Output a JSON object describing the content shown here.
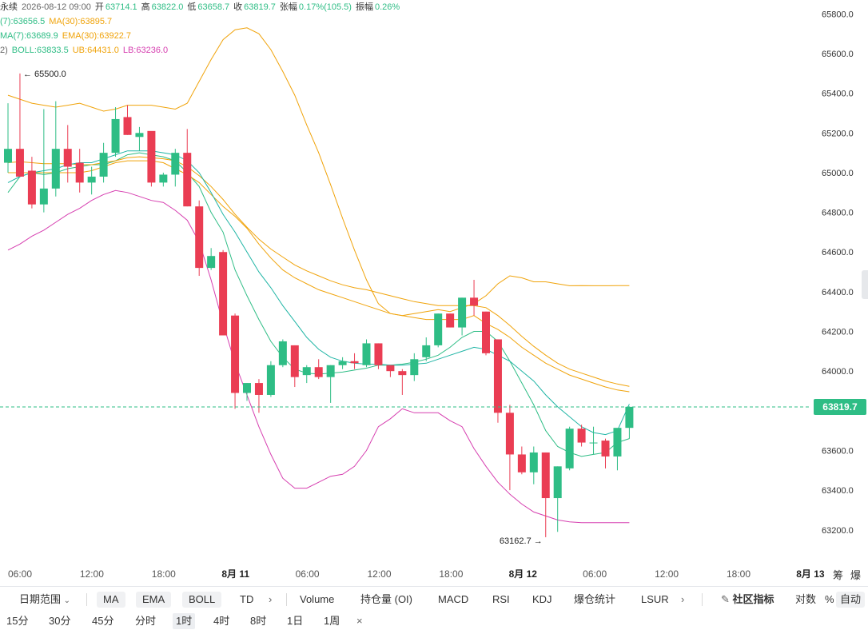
{
  "info": {
    "line1": {
      "symbol": "永续",
      "datetime": "2026-08-12 09:00",
      "open_label": "开",
      "open": "63714.1",
      "high_label": "高",
      "high": "63822.0",
      "low_label": "低",
      "low": "63658.7",
      "close_label": "收",
      "close": "63819.7",
      "change_label": "张幅",
      "change": "0.17%(105.5)",
      "amp_label": "振幅",
      "amp": "0.26%"
    },
    "line2": {
      "a": "(7):63656.5",
      "b": "MA(30):63895.7"
    },
    "line3": {
      "a": "MA(7):63689.9",
      "b": "EMA(30):63922.7"
    },
    "line4": {
      "a": "2)",
      "boll": "BOLL:63833.5",
      "ub": "UB:64431.0",
      "lb": "LB:63236.0"
    }
  },
  "colors": {
    "up": "#2ebd85",
    "down": "#ea3d53",
    "ma7": "#2ebd85",
    "ma30": "#f0a30a",
    "boll": "#d63fb0",
    "price_tag": "#2ebd85"
  },
  "chart_data": {
    "type": "candlestick",
    "interval": "1时",
    "ylim": [
      63050,
      65870
    ],
    "yticks": [
      65800.0,
      65600.0,
      65400.0,
      65200.0,
      65000.0,
      64800.0,
      64600.0,
      64400.0,
      64200.0,
      64000.0,
      63600.0,
      63400.0,
      63200.0
    ],
    "x_labels": [
      "06:00",
      "12:00",
      "18:00",
      "8月 11",
      "06:00",
      "12:00",
      "18:00",
      "8月 12",
      "06:00",
      "12:00",
      "18:00",
      "8月 13"
    ],
    "candles": [
      {
        "o": 65050,
        "h": 65350,
        "l": 65000,
        "c": 65120
      },
      {
        "o": 65120,
        "h": 65500,
        "l": 64980,
        "c": 64980
      },
      {
        "o": 65010,
        "h": 65080,
        "l": 64820,
        "c": 64840
      },
      {
        "o": 64840,
        "h": 65320,
        "l": 64800,
        "c": 64920
      },
      {
        "o": 64920,
        "h": 65360,
        "l": 64880,
        "c": 65120
      },
      {
        "o": 65120,
        "h": 65240,
        "l": 64950,
        "c": 65030
      },
      {
        "o": 65050,
        "h": 65120,
        "l": 64900,
        "c": 64950
      },
      {
        "o": 64950,
        "h": 65030,
        "l": 64890,
        "c": 64980
      },
      {
        "o": 64980,
        "h": 65150,
        "l": 64950,
        "c": 65100
      },
      {
        "o": 65100,
        "h": 65330,
        "l": 65080,
        "c": 65270
      },
      {
        "o": 65280,
        "h": 65340,
        "l": 65190,
        "c": 65190
      },
      {
        "o": 65180,
        "h": 65230,
        "l": 65110,
        "c": 65200
      },
      {
        "o": 65210,
        "h": 65200,
        "l": 64930,
        "c": 64950
      },
      {
        "o": 64950,
        "h": 65000,
        "l": 64930,
        "c": 64990
      },
      {
        "o": 64990,
        "h": 65120,
        "l": 64930,
        "c": 65100
      },
      {
        "o": 65100,
        "h": 65220,
        "l": 64830,
        "c": 64830
      },
      {
        "o": 64830,
        "h": 64860,
        "l": 64480,
        "c": 64520
      },
      {
        "o": 64520,
        "h": 64620,
        "l": 64510,
        "c": 64580
      },
      {
        "o": 64600,
        "h": 64610,
        "l": 64180,
        "c": 64180
      },
      {
        "o": 64280,
        "h": 64290,
        "l": 63810,
        "c": 63890
      },
      {
        "o": 63890,
        "h": 63940,
        "l": 63850,
        "c": 63940
      },
      {
        "o": 63940,
        "h": 63960,
        "l": 63790,
        "c": 63880
      },
      {
        "o": 63880,
        "h": 64050,
        "l": 63870,
        "c": 64030
      },
      {
        "o": 64030,
        "h": 64160,
        "l": 64020,
        "c": 64150
      },
      {
        "o": 64130,
        "h": 64130,
        "l": 63920,
        "c": 63970
      },
      {
        "o": 63980,
        "h": 64030,
        "l": 63940,
        "c": 64020
      },
      {
        "o": 64020,
        "h": 64060,
        "l": 63960,
        "c": 63970
      },
      {
        "o": 63970,
        "h": 64030,
        "l": 63840,
        "c": 64030
      },
      {
        "o": 64030,
        "h": 64070,
        "l": 64010,
        "c": 64050
      },
      {
        "o": 64050,
        "h": 64090,
        "l": 64010,
        "c": 64040
      },
      {
        "o": 64030,
        "h": 64160,
        "l": 64020,
        "c": 64140
      },
      {
        "o": 64140,
        "h": 64140,
        "l": 64010,
        "c": 64030
      },
      {
        "o": 64030,
        "h": 64030,
        "l": 63970,
        "c": 64000
      },
      {
        "o": 64000,
        "h": 64010,
        "l": 63880,
        "c": 63980
      },
      {
        "o": 63980,
        "h": 64090,
        "l": 63950,
        "c": 64060
      },
      {
        "o": 64070,
        "h": 64170,
        "l": 64050,
        "c": 64130
      },
      {
        "o": 64130,
        "h": 64290,
        "l": 64120,
        "c": 64290
      },
      {
        "o": 64290,
        "h": 64290,
        "l": 64220,
        "c": 64220
      },
      {
        "o": 64220,
        "h": 64370,
        "l": 64180,
        "c": 64370
      },
      {
        "o": 64370,
        "h": 64460,
        "l": 64280,
        "c": 64330
      },
      {
        "o": 64300,
        "h": 64300,
        "l": 64080,
        "c": 64090
      },
      {
        "o": 64160,
        "h": 64160,
        "l": 63740,
        "c": 63790
      },
      {
        "o": 63790,
        "h": 63830,
        "l": 63400,
        "c": 63580
      },
      {
        "o": 63580,
        "h": 63620,
        "l": 63480,
        "c": 63490
      },
      {
        "o": 63490,
        "h": 63620,
        "l": 63430,
        "c": 63590
      },
      {
        "o": 63590,
        "h": 63590,
        "l": 63163,
        "c": 63360
      },
      {
        "o": 63360,
        "h": 63520,
        "l": 63190,
        "c": 63520
      },
      {
        "o": 63510,
        "h": 63720,
        "l": 63500,
        "c": 63710
      },
      {
        "o": 63710,
        "h": 63730,
        "l": 63620,
        "c": 63640
      },
      {
        "o": 63640,
        "h": 63720,
        "l": 63580,
        "c": 63640
      },
      {
        "o": 63650,
        "h": 63660,
        "l": 63510,
        "c": 63570
      },
      {
        "o": 63570,
        "h": 63710,
        "l": 63500,
        "c": 63714
      },
      {
        "o": 63714,
        "h": 63822,
        "l": 63659,
        "c": 63820
      }
    ],
    "series": [
      {
        "name": "MA(7)",
        "values": [
          64900,
          64980,
          65000,
          64990,
          65000,
          65020,
          65030,
          65040,
          65040,
          65060,
          65090,
          65100,
          65090,
          65080,
          65060,
          65000,
          64930,
          64800,
          64700,
          64510,
          64380,
          64260,
          64150,
          64070,
          64010,
          63990,
          63985,
          63990,
          63995,
          64005,
          64015,
          64030,
          64030,
          64035,
          64045,
          64060,
          64080,
          64120,
          64170,
          64200,
          64200,
          64150,
          64050,
          63940,
          63830,
          63700,
          63620,
          63590,
          63570,
          63580,
          63590,
          63640,
          63660
        ]
      },
      {
        "name": "MA(30)",
        "values": [
          65000,
          65000,
          65000,
          65000,
          65000,
          65000,
          65000,
          65010,
          65030,
          65050,
          65060,
          65060,
          65060,
          65050,
          65020,
          64990,
          64950,
          64890,
          64830,
          64780,
          64720,
          64640,
          64570,
          64510,
          64470,
          64440,
          64410,
          64390,
          64370,
          64350,
          64330,
          64310,
          64290,
          64280,
          64270,
          64260,
          64260,
          64260,
          64260,
          64280,
          64240,
          64210,
          64170,
          64120,
          64080,
          64040,
          64010,
          63980,
          63960,
          63940,
          63920,
          63905,
          63896
        ]
      },
      {
        "name": "EMA(30)",
        "values": [
          65050,
          65055,
          65050,
          65045,
          65045,
          65045,
          65040,
          65040,
          65050,
          65060,
          65075,
          65080,
          65075,
          65070,
          65060,
          65030,
          64985,
          64930,
          64865,
          64790,
          64725,
          64665,
          64615,
          64575,
          64535,
          64505,
          64480,
          64455,
          64435,
          64420,
          64410,
          64395,
          64380,
          64365,
          64350,
          64340,
          64330,
          64330,
          64330,
          64330,
          64320,
          64280,
          64230,
          64175,
          64125,
          64080,
          64040,
          64010,
          63990,
          63970,
          63950,
          63935,
          63923
        ]
      },
      {
        "name": "BOLL",
        "values": [
          64950,
          64980,
          65000,
          65010,
          65020,
          65040,
          65050,
          65050,
          65070,
          65090,
          65110,
          65110,
          65110,
          65100,
          65090,
          65060,
          65000,
          64900,
          64790,
          64700,
          64600,
          64500,
          64420,
          64330,
          64250,
          64170,
          64110,
          64070,
          64050,
          64040,
          64035,
          64035,
          64030,
          64030,
          64035,
          64040,
          64060,
          64080,
          64100,
          64120,
          64110,
          64080,
          64050,
          64000,
          63950,
          63880,
          63820,
          63770,
          63720,
          63690,
          63680,
          63700,
          63834
        ]
      },
      {
        "name": "UB",
        "values": [
          65390,
          65370,
          65350,
          65340,
          65330,
          65340,
          65350,
          65330,
          65310,
          65320,
          65340,
          65340,
          65340,
          65330,
          65320,
          65350,
          65460,
          65570,
          65670,
          65720,
          65730,
          65700,
          65620,
          65510,
          65390,
          65240,
          65100,
          64940,
          64770,
          64610,
          64460,
          64340,
          64290,
          64280,
          64290,
          64300,
          64310,
          64300,
          64320,
          64340,
          64380,
          64440,
          64480,
          64470,
          64450,
          64450,
          64440,
          64430,
          64431,
          64430,
          64430,
          64431,
          64431
        ]
      },
      {
        "name": "LB",
        "values": [
          64610,
          64640,
          64680,
          64710,
          64750,
          64790,
          64820,
          64860,
          64890,
          64910,
          64900,
          64880,
          64860,
          64850,
          64810,
          64760,
          64650,
          64460,
          64240,
          64040,
          63880,
          63720,
          63580,
          63460,
          63410,
          63410,
          63440,
          63470,
          63480,
          63520,
          63600,
          63720,
          63760,
          63810,
          63790,
          63790,
          63790,
          63750,
          63720,
          63610,
          63520,
          63440,
          63380,
          63330,
          63290,
          63270,
          63250,
          63240,
          63236,
          63236,
          63236,
          63236,
          63236
        ]
      }
    ],
    "annotations": [
      {
        "text": "← 65500.0",
        "price": 65500.0
      },
      {
        "text": "63162.7 →",
        "price": 63162.7
      }
    ],
    "last_price": "63819.7"
  },
  "toolbar": {
    "date_range": "日期范围",
    "pills": [
      "MA",
      "EMA",
      "BOLL"
    ],
    "td": "TD",
    "indicators": [
      "Volume",
      "持仓量 (OI)",
      "MACD",
      "RSI",
      "KDJ",
      "爆仓统计",
      "LSUR"
    ],
    "community": "社区指标",
    "log": "对数",
    "pct": "%",
    "auto": "自动"
  },
  "corner": {
    "a": "筹",
    "b": "爆"
  },
  "intervals": [
    "15分",
    "30分",
    "45分",
    "分时",
    "1时",
    "4时",
    "8时",
    "1日",
    "1周"
  ],
  "active_interval": "1时",
  "close_symbol": "×"
}
